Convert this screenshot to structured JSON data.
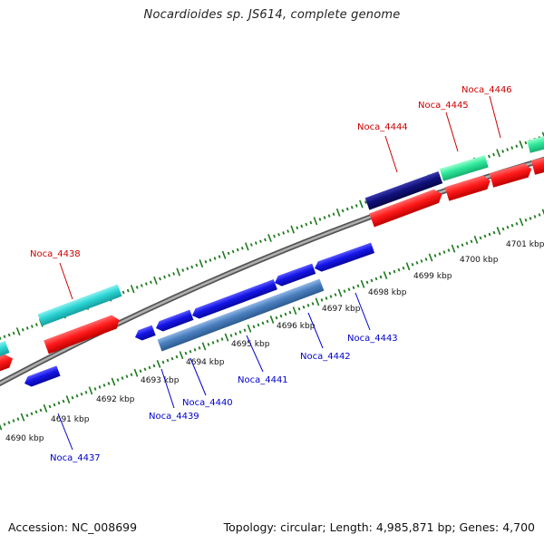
{
  "header": {
    "title": "Nocardioides sp. JS614, complete genome"
  },
  "footer": {
    "accession": "Accession: NC_008699",
    "summary": "Topology: circular; Length: 4,985,871 bp; Genes: 4,700"
  },
  "colors": {
    "forward_gene": "#ff1a1a",
    "reverse_gene": "#1414e6",
    "cyan_feature": "#2cd4d4",
    "seagreen_feature": "#2ee89a",
    "navy_feature": "#10107a",
    "steel_feature": "#4a7fbf",
    "backbone": "#8a8a8a",
    "tick": "#1e7a1e",
    "forward_label": "#cc0000",
    "reverse_label": "#0000cc"
  },
  "kbp_labels": [
    "4690 kbp",
    "4691 kbp",
    "4692 kbp",
    "4693 kbp",
    "4694 kbp",
    "4695 kbp",
    "4696 kbp",
    "4697 kbp",
    "4698 kbp",
    "4699 kbp",
    "4700 kbp",
    "4701 kbp"
  ],
  "forward_labels": [
    "Noca_4438",
    "Noca_4444",
    "Noca_4445",
    "Noca_4446"
  ],
  "reverse_labels": [
    "Noca_4437",
    "Noca_4439",
    "Noca_4440",
    "Noca_4441",
    "Noca_4442",
    "Noca_4443"
  ]
}
